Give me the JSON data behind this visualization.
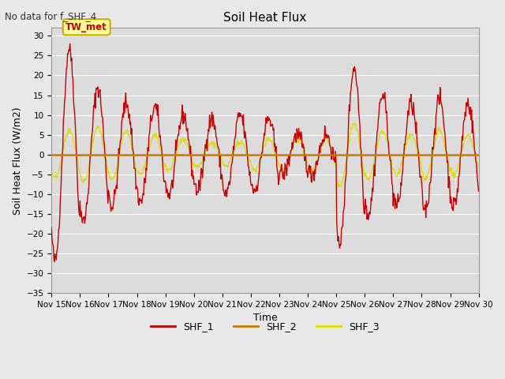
{
  "title": "Soil Heat Flux",
  "subtitle": "No data for f_SHF_4",
  "ylabel": "Soil Heat Flux (W/m2)",
  "xlabel": "Time",
  "ylim": [
    -35,
    32
  ],
  "yticks": [
    -35,
    -30,
    -25,
    -20,
    -15,
    -10,
    -5,
    0,
    5,
    10,
    15,
    20,
    25,
    30
  ],
  "background_color": "#e8e8e8",
  "plot_bg_color": "#dcdcdc",
  "annotation_text": "TW_met",
  "annotation_color": "#cc0000",
  "annotation_bg": "#ffff99",
  "annotation_border": "#ccaa00",
  "shf1_color": "#cc0000",
  "shf2_color": "#cc7700",
  "shf3_color": "#dddd00",
  "grid_color": "#ffffff",
  "tick_fontsize": 7.5,
  "title_fontsize": 11,
  "label_fontsize": 9
}
